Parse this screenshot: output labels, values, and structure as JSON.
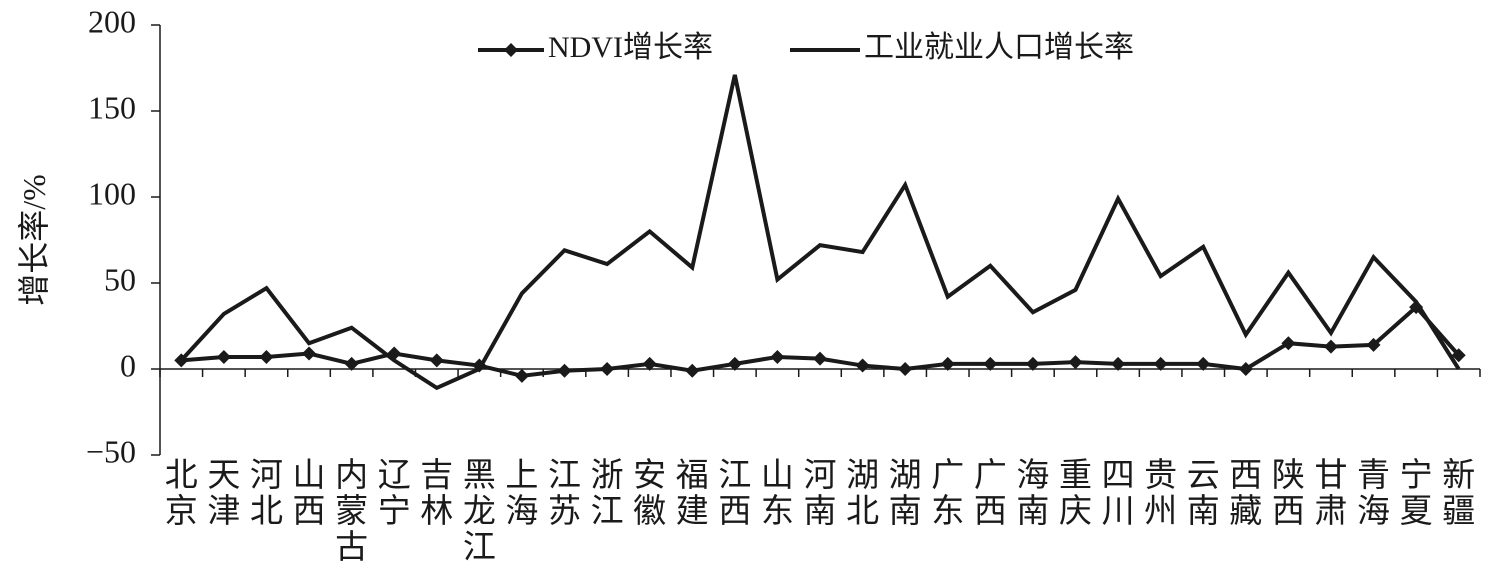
{
  "chart_data": {
    "type": "line",
    "y_label": "增长率/%",
    "categories": [
      "北京",
      "天津",
      "河北",
      "山西",
      "内蒙古",
      "辽宁",
      "吉林",
      "黑龙江",
      "上海",
      "江苏",
      "浙江",
      "安徽",
      "福建",
      "江西",
      "山东",
      "河南",
      "湖北",
      "湖南",
      "广东",
      "广西",
      "海南",
      "重庆",
      "四川",
      "贵州",
      "云南",
      "西藏",
      "陕西",
      "甘肃",
      "青海",
      "宁夏",
      "新疆"
    ],
    "series": [
      {
        "name": "NDVI增长率",
        "color": "#1a1a1a",
        "marker": "diamond",
        "values": [
          5,
          7,
          7,
          9,
          3,
          9,
          5,
          2,
          -4,
          -1,
          0,
          3,
          -1,
          3,
          7,
          6,
          2,
          0,
          3,
          3,
          3,
          4,
          3,
          3,
          3,
          0,
          15,
          13,
          14,
          36,
          8
        ]
      },
      {
        "name": "工业就业人口增长率",
        "color": "#1a1a1a",
        "marker": "none",
        "values": [
          5,
          32,
          47,
          15,
          24,
          5,
          -11,
          0,
          44,
          69,
          61,
          80,
          59,
          171,
          52,
          72,
          68,
          107,
          42,
          60,
          33,
          46,
          99,
          54,
          71,
          20,
          56,
          21,
          65,
          39,
          0
        ]
      }
    ],
    "ylim": [
      -50,
      200
    ],
    "yticks": [
      {
        "value": -50,
        "label": "−50"
      },
      0,
      50,
      100,
      150,
      200
    ],
    "grid": false,
    "legend": "top"
  }
}
